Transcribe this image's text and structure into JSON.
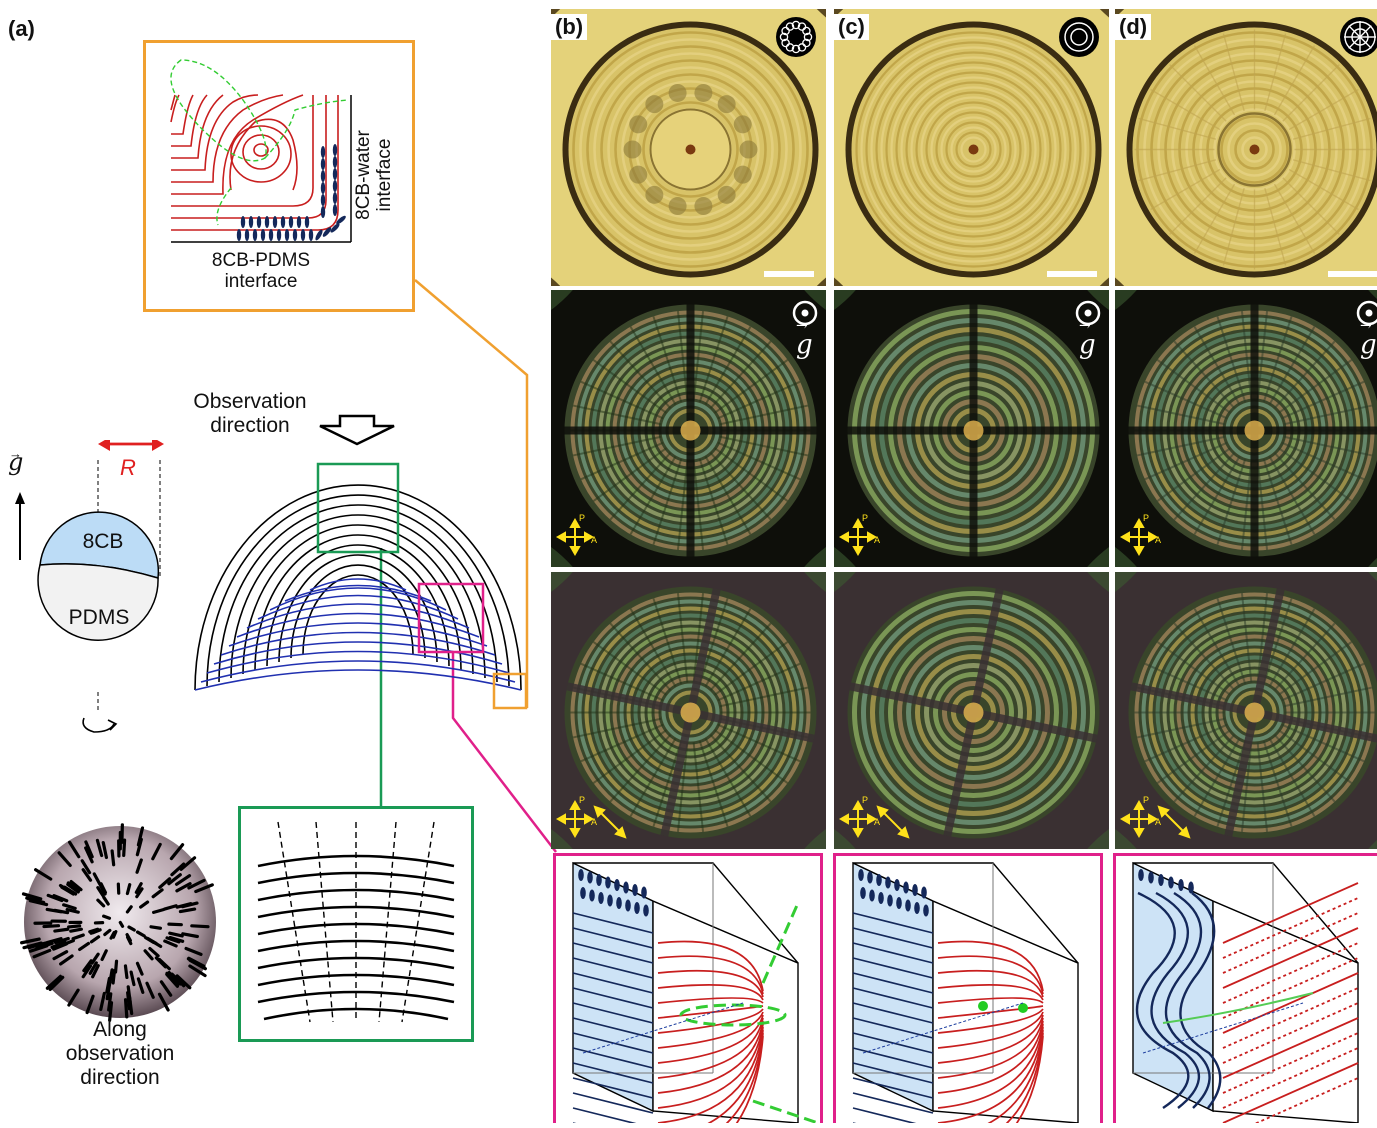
{
  "panels": {
    "a": "(a)",
    "b": "(b)",
    "c": "(c)",
    "d": "(d)"
  },
  "inset_top": {
    "label_water_line1": "8CB-water",
    "label_water_line2": "interface",
    "label_pdms_line1": "8CB-PDMS",
    "label_pdms_line2": "interface"
  },
  "schematic": {
    "observation_line1": "Observation",
    "observation_line2": "direction",
    "gravity_symbol": "g",
    "radius_symbol": "R",
    "top_droplet": "8CB",
    "bottom_droplet": "PDMS"
  },
  "sphere_caption": {
    "line1": "Along",
    "line2": "observation",
    "line3": "direction"
  },
  "micro_overlays": {
    "gravity_symbol": "g",
    "polarizer_p": "P",
    "polarizer_a": "A"
  },
  "colors": {
    "orange": "#f0a030",
    "green": "#1a9a55",
    "magenta": "#e0208a",
    "red_line": "#c81e1e",
    "blue_line": "#1f3aa8",
    "navy": "#14285a",
    "dashed_green": "#33cc33",
    "arrow_red": "#e02020",
    "droplet_blue": "#bcdcf6",
    "yellow_overlay": "#ffe21a"
  },
  "icons": [
    "observation-arrow-icon",
    "rotation-arrow-icon",
    "dot-in-circle-icon",
    "polarizer-cross-icon",
    "analyzer-arrow-icon"
  ]
}
